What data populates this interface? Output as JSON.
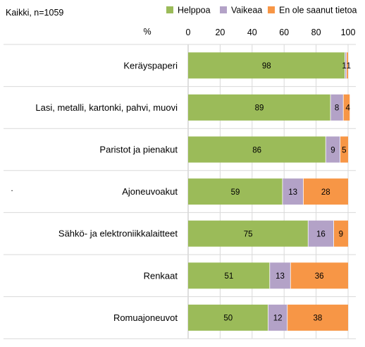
{
  "chart_data": {
    "type": "bar",
    "orientation": "horizontal",
    "stacked": true,
    "subtitle": "Kaikki, n=1059",
    "axis_unit_label": "%",
    "xlim": [
      0,
      100
    ],
    "x_ticks": [
      "0",
      "20",
      "40",
      "60",
      "80",
      "100"
    ],
    "grid": true,
    "legend_position": "top-right",
    "categories": [
      "Keräyspaperi",
      "Lasi, metalli, kartonki, pahvi, muovi",
      "Paristot ja pienakut",
      "Ajoneuvoakut",
      "Sähkö- ja elektroniikkalaitteet",
      "Renkaat",
      "Romuajoneuvot"
    ],
    "series": [
      {
        "name": "Helppoa",
        "color": "#9bbb59",
        "values": [
          98,
          89,
          86,
          59,
          75,
          51,
          50
        ]
      },
      {
        "name": "Vaikeaa",
        "color": "#b3a2c7",
        "values": [
          1,
          8,
          9,
          13,
          16,
          13,
          12
        ]
      },
      {
        "name": "En ole saanut tietoa",
        "color": "#f79646",
        "values": [
          1,
          4,
          5,
          28,
          9,
          36,
          38
        ]
      }
    ],
    "data_labels": [
      [
        "98",
        "1",
        "1"
      ],
      [
        "89",
        "8",
        "4"
      ],
      [
        "86",
        "9",
        "5"
      ],
      [
        "59",
        "13",
        "28"
      ],
      [
        "75",
        "16",
        "9"
      ],
      [
        "51",
        "13",
        "36"
      ],
      [
        "50",
        "12",
        "38"
      ]
    ],
    "stray_mark": "."
  }
}
